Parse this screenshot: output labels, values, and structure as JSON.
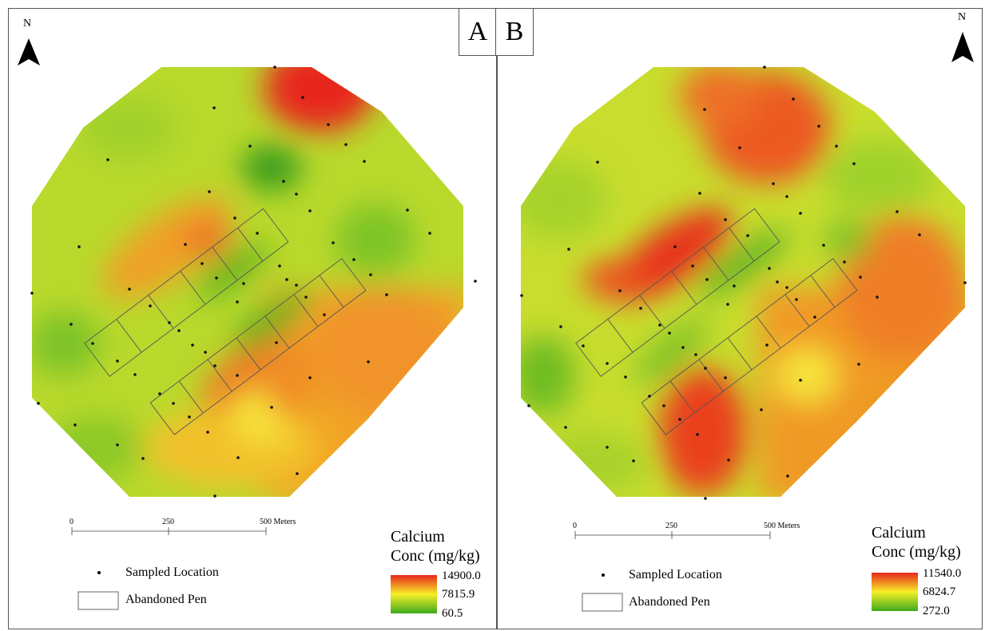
{
  "panels": [
    {
      "id": "A",
      "panel_label": "A",
      "north_label": "N",
      "scale": {
        "ticks": [
          "0",
          "250",
          "500 Meters"
        ]
      },
      "legend": {
        "title_line1": "Calcium",
        "title_line2": "Conc (mg/kg)",
        "max": "14900.0",
        "mid": "7815.9",
        "min": "60.5",
        "colors": [
          "#e8261c",
          "#f6ef27",
          "#3eaa1c"
        ]
      },
      "key": {
        "point_label": "Sampled Location",
        "pen_label": "Abandoned Pen"
      }
    },
    {
      "id": "B",
      "panel_label": "B",
      "north_label": "N",
      "scale": {
        "ticks": [
          "0",
          "250",
          "500 Meters"
        ]
      },
      "legend": {
        "title_line1": "Calcium",
        "title_line2": "Conc (mg/kg)",
        "max": "11540.0",
        "mid": "6824.7",
        "min": "272.0",
        "colors": [
          "#e8261c",
          "#f6ef27",
          "#3eaa1c"
        ]
      },
      "key": {
        "point_label": "Sampled Location",
        "pen_label": "Abandoned Pen"
      }
    }
  ]
}
